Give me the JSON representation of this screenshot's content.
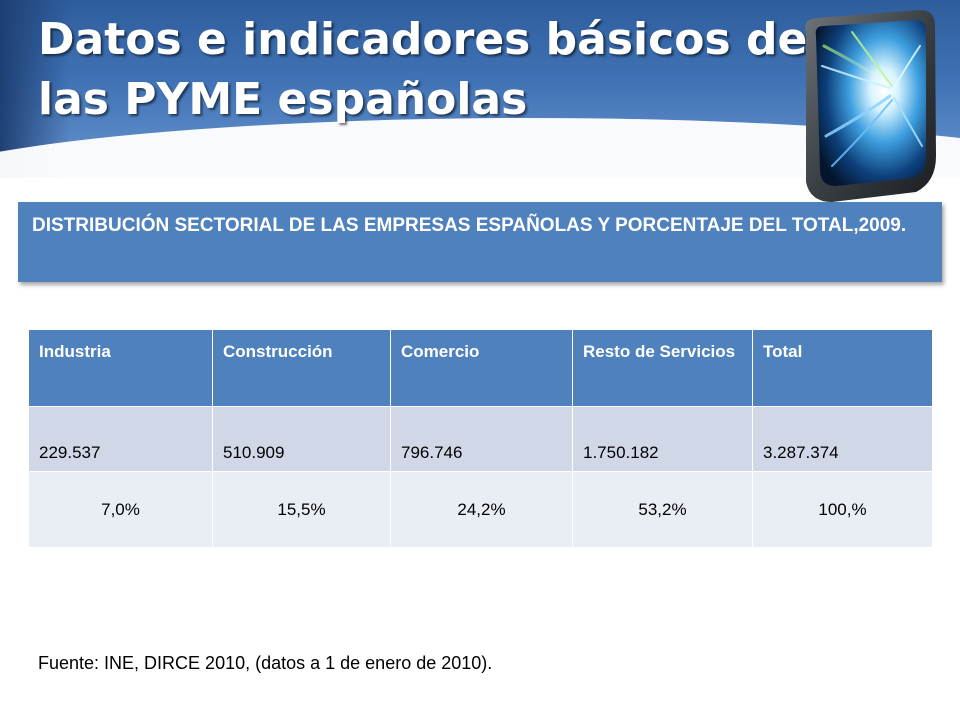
{
  "slide": {
    "title_line_1": "Datos e indicadores básicos de",
    "title_line_2": "las PYME españolas",
    "subtitle": "DISTRIBUCIÓN SECTORIAL DE LAS EMPRESAS ESPAÑOLAS Y PORCENTAJE DEL TOTAL,2009.",
    "source_note": "Fuente: INE, DIRCE 2010, (datos a 1 de enero de 2010)."
  },
  "table": {
    "headers": [
      "Industria",
      "Construcción",
      "Comercio",
      "Resto de Servicios",
      "Total"
    ],
    "rows": [
      [
        "229.537",
        "510.909",
        "796.746",
        "1.750.182",
        "3.287.374"
      ],
      [
        "7,0%",
        "15,5%",
        "24,2%",
        "53,2%",
        "100,%"
      ]
    ]
  },
  "colors": {
    "header_fill": "#4f81bd",
    "row_band_dark": "#d0d8e8",
    "row_band_light": "#e9edf4",
    "title_banner": "#3f72b5"
  },
  "decoration": {
    "icon": "light-tunnel-cube-icon"
  }
}
